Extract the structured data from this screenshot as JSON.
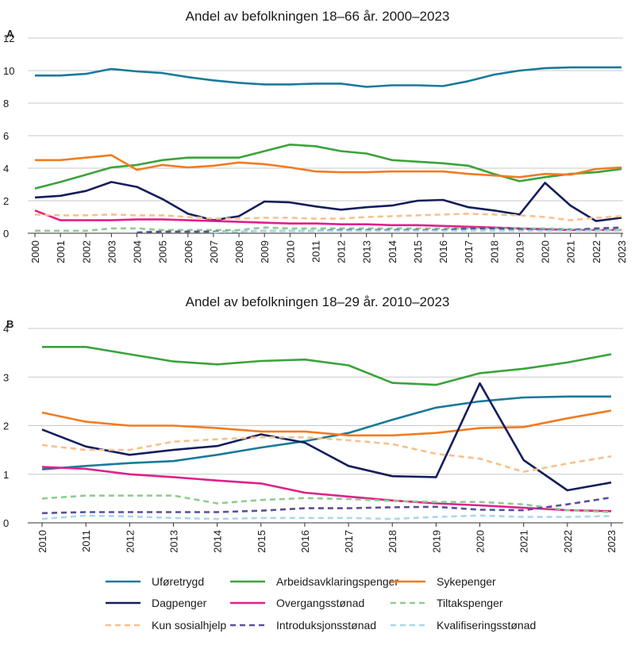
{
  "series_styles": [
    {
      "key": "uforetrygd",
      "color": "#1a7a9a",
      "dash": ""
    },
    {
      "key": "arbeidsavklaringspenger",
      "color": "#3aa33a",
      "dash": ""
    },
    {
      "key": "sykepenger",
      "color": "#f07c22",
      "dash": ""
    },
    {
      "key": "dagpenger",
      "color": "#141e5c",
      "dash": ""
    },
    {
      "key": "overgangsstonad",
      "color": "#e0208a",
      "dash": ""
    },
    {
      "key": "tiltakspenger",
      "color": "#8fcc8f",
      "dash": "7 5"
    },
    {
      "key": "kun_sosialhjelp",
      "color": "#f8c08c",
      "dash": "7 5"
    },
    {
      "key": "introduksjonsstonad",
      "color": "#5a4f99",
      "dash": "7 5"
    },
    {
      "key": "kvalifiseringsstonad",
      "color": "#a8d8ea",
      "dash": "7 5"
    }
  ],
  "legend": [
    "Uføretrygd",
    "Arbeidsavklaringspenger",
    "Sykepenger",
    "Dagpenger",
    "Overgangsstønad",
    "Tiltakspenger",
    "Kun sosialhjelp",
    "Introduksjonsstønad",
    "Kvalifiseringsstønad"
  ],
  "chart_data": [
    {
      "type": "line",
      "panel": "A",
      "title": "Andel av befolkningen 18–66 år. 2000–2023",
      "categories": [
        "2000",
        "2001",
        "2002",
        "2003",
        "2004",
        "2005",
        "2006",
        "2007",
        "2008",
        "2009",
        "2010",
        "2011",
        "2012",
        "2013",
        "2014",
        "2015",
        "2016",
        "2017",
        "2018",
        "2019",
        "2020",
        "2021",
        "2022",
        "2023"
      ],
      "ylim": [
        0,
        12
      ],
      "yticks": [
        0,
        2,
        4,
        6,
        8,
        10,
        12
      ],
      "series": [
        {
          "name": "Uføretrygd",
          "values": [
            9.7,
            9.7,
            9.8,
            10.1,
            9.95,
            9.85,
            9.6,
            9.4,
            9.25,
            9.15,
            9.15,
            9.2,
            9.2,
            9.0,
            9.1,
            9.1,
            9.05,
            9.35,
            9.75,
            10.0,
            10.15,
            10.2,
            10.2,
            10.2
          ]
        },
        {
          "name": "Arbeidsavklaringspenger",
          "values": [
            2.75,
            3.15,
            3.6,
            4.05,
            4.2,
            4.5,
            4.65,
            4.65,
            4.65,
            5.05,
            5.45,
            5.35,
            5.05,
            4.9,
            4.5,
            4.4,
            4.3,
            4.15,
            3.65,
            3.2,
            3.45,
            3.65,
            3.75,
            3.95
          ]
        },
        {
          "name": "Sykepenger",
          "values": [
            4.5,
            4.5,
            4.65,
            4.8,
            3.9,
            4.2,
            4.05,
            4.15,
            4.35,
            4.25,
            4.05,
            3.8,
            3.75,
            3.75,
            3.8,
            3.8,
            3.8,
            3.65,
            3.55,
            3.45,
            3.65,
            3.6,
            3.95,
            4.05
          ]
        },
        {
          "name": "Dagpenger",
          "values": [
            2.2,
            2.3,
            2.6,
            3.15,
            2.85,
            2.1,
            1.2,
            0.8,
            1.05,
            1.95,
            1.9,
            1.65,
            1.45,
            1.6,
            1.7,
            2.0,
            2.05,
            1.6,
            1.4,
            1.15,
            3.1,
            1.7,
            0.75,
            0.95
          ]
        },
        {
          "name": "Overgangsstønad",
          "values": [
            1.4,
            0.8,
            0.8,
            0.8,
            0.85,
            0.85,
            0.8,
            0.75,
            0.7,
            0.65,
            0.6,
            0.6,
            0.55,
            0.55,
            0.5,
            0.5,
            0.45,
            0.4,
            0.35,
            0.3,
            0.25,
            0.2,
            0.2,
            0.2
          ]
        },
        {
          "name": "Tiltakspenger",
          "values": [
            0.15,
            0.15,
            0.15,
            0.3,
            0.3,
            0.2,
            0.2,
            0.2,
            0.2,
            0.35,
            0.3,
            0.3,
            0.3,
            0.3,
            0.3,
            0.3,
            0.3,
            0.3,
            0.3,
            0.3,
            0.3,
            0.25,
            0.2,
            0.2
          ]
        },
        {
          "name": "Kun sosialhjelp",
          "values": [
            1.15,
            1.1,
            1.1,
            1.15,
            1.1,
            1.1,
            1.0,
            0.9,
            0.9,
            0.95,
            0.95,
            0.9,
            0.9,
            1.0,
            1.05,
            1.1,
            1.15,
            1.2,
            1.15,
            1.1,
            1.0,
            0.8,
            0.95,
            1.05
          ]
        },
        {
          "name": "Introduksjonsstønad",
          "values": [
            null,
            null,
            null,
            null,
            0.05,
            0.1,
            0.1,
            0.1,
            0.1,
            0.15,
            0.15,
            0.15,
            0.2,
            0.2,
            0.2,
            0.2,
            0.2,
            0.3,
            0.3,
            0.25,
            0.2,
            0.2,
            0.3,
            0.35
          ]
        },
        {
          "name": "Kvalifiseringsstønad",
          "values": [
            null,
            null,
            null,
            null,
            null,
            null,
            null,
            0.05,
            0.1,
            0.15,
            0.15,
            0.15,
            0.15,
            0.15,
            0.15,
            0.15,
            0.15,
            0.15,
            0.15,
            0.15,
            0.15,
            0.15,
            0.15,
            0.15
          ]
        }
      ]
    },
    {
      "type": "line",
      "panel": "B",
      "title": "Andel av befolkningen 18–29 år. 2010–2023",
      "categories": [
        "2010",
        "2011",
        "2012",
        "2013",
        "2014",
        "2015",
        "2016",
        "2017",
        "2018",
        "2019",
        "2020",
        "2021",
        "2022",
        "2023"
      ],
      "ylim": [
        0,
        4
      ],
      "yticks": [
        0,
        1,
        2,
        3,
        4
      ],
      "series": [
        {
          "name": "Uføretrygd",
          "values": [
            1.1,
            1.17,
            1.23,
            1.27,
            1.4,
            1.55,
            1.68,
            1.85,
            2.12,
            2.37,
            2.5,
            2.58,
            2.6,
            2.6
          ]
        },
        {
          "name": "Arbeidsavklaringspenger",
          "values": [
            3.62,
            3.62,
            3.47,
            3.32,
            3.26,
            3.33,
            3.36,
            3.24,
            2.88,
            2.84,
            3.08,
            3.17,
            3.3,
            3.47
          ]
        },
        {
          "name": "Sykepenger",
          "values": [
            2.27,
            2.08,
            2.0,
            2.0,
            1.95,
            1.88,
            1.88,
            1.8,
            1.8,
            1.85,
            1.95,
            1.97,
            2.15,
            2.31
          ]
        },
        {
          "name": "Dagpenger",
          "values": [
            1.92,
            1.57,
            1.4,
            1.5,
            1.58,
            1.82,
            1.65,
            1.17,
            0.96,
            0.94,
            2.87,
            1.29,
            0.67,
            0.83
          ]
        },
        {
          "name": "Overgangsstønad",
          "values": [
            1.15,
            1.11,
            1.0,
            0.94,
            0.87,
            0.81,
            0.62,
            0.54,
            0.46,
            0.4,
            0.36,
            0.31,
            0.26,
            0.24
          ]
        },
        {
          "name": "Tiltakspenger",
          "values": [
            0.5,
            0.56,
            0.56,
            0.56,
            0.4,
            0.47,
            0.51,
            0.49,
            0.45,
            0.43,
            0.43,
            0.38,
            0.26,
            0.22
          ]
        },
        {
          "name": "Kun sosialhjelp",
          "values": [
            1.6,
            1.5,
            1.5,
            1.67,
            1.72,
            1.76,
            1.76,
            1.7,
            1.62,
            1.42,
            1.32,
            1.05,
            1.22,
            1.37
          ]
        },
        {
          "name": "Introduksjonsstønad",
          "values": [
            0.2,
            0.22,
            0.22,
            0.22,
            0.22,
            0.25,
            0.3,
            0.3,
            0.32,
            0.33,
            0.27,
            0.26,
            0.38,
            0.52
          ]
        },
        {
          "name": "Kvalifiseringsstønad",
          "values": [
            0.08,
            0.15,
            0.13,
            0.1,
            0.08,
            0.1,
            0.1,
            0.1,
            0.08,
            0.12,
            0.15,
            0.12,
            0.12,
            0.14
          ]
        }
      ]
    }
  ]
}
